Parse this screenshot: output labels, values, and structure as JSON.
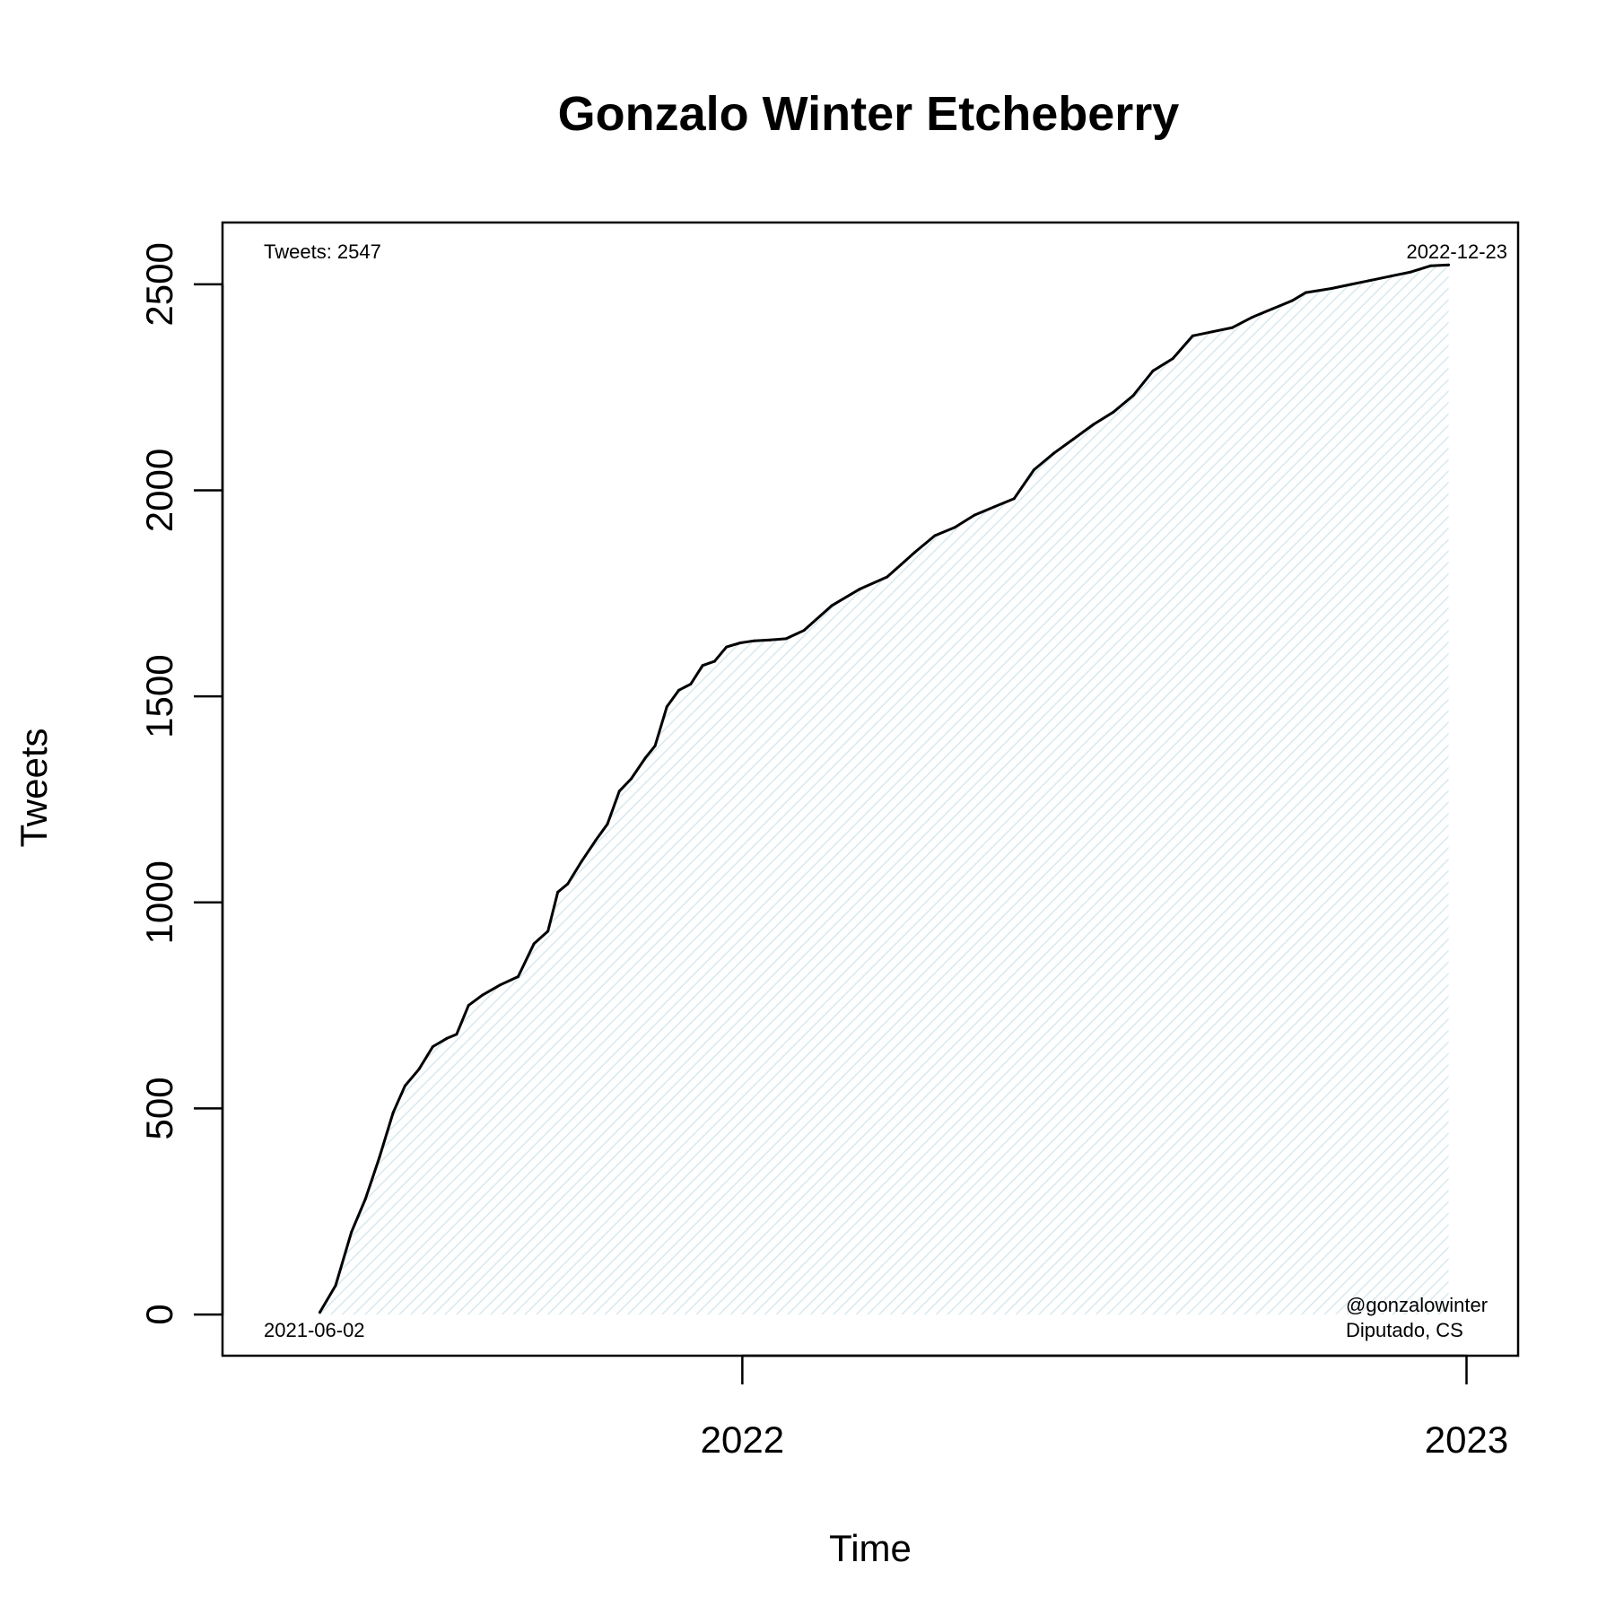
{
  "chart_data": {
    "type": "area",
    "title": "Gonzalo Winter Etcheberry",
    "xlabel": "Time",
    "ylabel": "Tweets",
    "x_ticks": [
      {
        "value": "2022-01-01",
        "label": "2022"
      },
      {
        "value": "2023-01-01",
        "label": "2023"
      }
    ],
    "y_ticks": [
      0,
      500,
      1000,
      1500,
      2000,
      2500
    ],
    "xlim": [
      "2021-04-14",
      "2023-01-27"
    ],
    "ylim": [
      -100,
      2650
    ],
    "grid": false,
    "legend": "none",
    "annotations": {
      "top_left": "Tweets: 2547",
      "top_right": "2022-12-23",
      "bottom_left": "2021-06-02",
      "bottom_right_1": "@gonzalowinter",
      "bottom_right_2": "Diputado, CS"
    },
    "line_color": "#000000",
    "fill_color": "#e4f1f5",
    "series": [
      {
        "x": [
          "2021-06-02",
          "2021-06-10",
          "2021-06-18",
          "2021-06-25",
          "2021-07-02",
          "2021-07-09",
          "2021-07-15",
          "2021-07-22",
          "2021-07-29",
          "2021-08-05",
          "2021-08-10",
          "2021-08-16",
          "2021-08-23",
          "2021-09-01",
          "2021-09-10",
          "2021-09-18",
          "2021-09-25",
          "2021-09-30",
          "2021-10-05",
          "2021-10-12",
          "2021-10-19",
          "2021-10-25",
          "2021-10-31",
          "2021-11-06",
          "2021-11-13",
          "2021-11-18",
          "2021-11-24",
          "2021-11-30",
          "2021-12-06",
          "2021-12-12",
          "2021-12-18",
          "2021-12-24",
          "2021-12-31",
          "2022-01-07",
          "2022-01-15",
          "2022-01-23",
          "2022-02-01",
          "2022-02-15",
          "2022-03-01",
          "2022-03-15",
          "2022-03-22",
          "2022-03-29",
          "2022-04-08",
          "2022-04-18",
          "2022-04-28",
          "2022-05-08",
          "2022-05-18",
          "2022-05-28",
          "2022-06-07",
          "2022-06-17",
          "2022-06-27",
          "2022-07-07",
          "2022-07-17",
          "2022-07-27",
          "2022-08-06",
          "2022-08-16",
          "2022-08-26",
          "2022-09-05",
          "2022-09-15",
          "2022-09-25",
          "2022-10-05",
          "2022-10-12",
          "2022-10-25",
          "2022-11-04",
          "2022-11-14",
          "2022-11-24",
          "2022-12-04",
          "2022-12-14",
          "2022-12-23"
        ],
        "y": [
          5,
          70,
          200,
          280,
          380,
          490,
          555,
          595,
          650,
          670,
          680,
          750,
          775,
          800,
          820,
          900,
          930,
          1025,
          1045,
          1100,
          1150,
          1190,
          1270,
          1300,
          1350,
          1380,
          1475,
          1515,
          1530,
          1575,
          1585,
          1620,
          1630,
          1635,
          1637,
          1640,
          1660,
          1720,
          1760,
          1790,
          1820,
          1850,
          1890,
          1910,
          1940,
          1960,
          1980,
          2050,
          2090,
          2125,
          2160,
          2190,
          2230,
          2290,
          2320,
          2375,
          2385,
          2395,
          2420,
          2440,
          2460,
          2480,
          2490,
          2500,
          2510,
          2520,
          2530,
          2545,
          2547
        ]
      }
    ]
  }
}
